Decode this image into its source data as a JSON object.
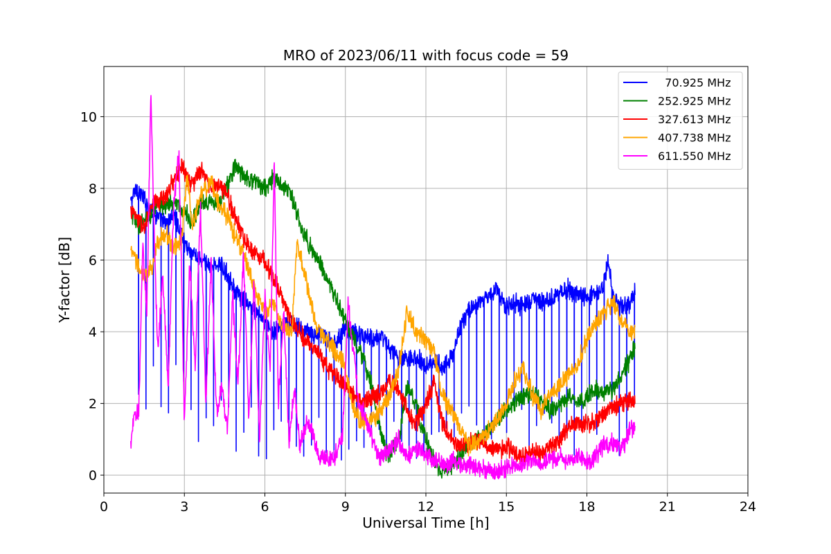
{
  "chart_data": {
    "type": "line",
    "title": "MRO of 2023/06/11 with focus code = 59",
    "xlabel": "Universal Time [h]",
    "ylabel": "Y-factor [dB]",
    "xlim": [
      0,
      24
    ],
    "ylim": [
      -0.5,
      11.4
    ],
    "xticks": [
      0,
      3,
      6,
      9,
      12,
      15,
      18,
      21,
      24
    ],
    "yticks": [
      0,
      2,
      4,
      6,
      8,
      10
    ],
    "grid": true,
    "legend_position": "top-right",
    "series": [
      {
        "name": "  70.925 MHz",
        "color": "#0000ff",
        "x": [
          1.0,
          1.2,
          1.5,
          1.8,
          2.0,
          2.3,
          2.6,
          3.0,
          3.3,
          3.6,
          4.0,
          4.3,
          4.6,
          5.0,
          5.3,
          5.6,
          6.0,
          6.3,
          6.6,
          7.0,
          7.3,
          7.6,
          8.0,
          8.3,
          8.6,
          9.0,
          9.3,
          9.6,
          10.0,
          10.3,
          10.6,
          11.0,
          11.3,
          11.6,
          12.0,
          12.3,
          12.6,
          13.0,
          13.3,
          13.6,
          14.0,
          14.3,
          14.6,
          15.0,
          15.3,
          15.6,
          16.0,
          16.3,
          16.6,
          17.0,
          17.3,
          17.6,
          18.0,
          18.3,
          18.6,
          18.8,
          19.0,
          19.3,
          19.6,
          19.8
        ],
        "y": [
          7.6,
          8.0,
          7.7,
          7.4,
          7.2,
          7.0,
          7.3,
          6.5,
          6.2,
          6.0,
          5.8,
          5.9,
          5.6,
          5.0,
          4.8,
          4.6,
          4.3,
          4.0,
          4.1,
          4.2,
          4.1,
          4.0,
          3.9,
          3.8,
          3.7,
          4.1,
          4.0,
          3.9,
          3.8,
          3.9,
          3.6,
          3.2,
          3.3,
          3.3,
          3.1,
          3.2,
          3.0,
          3.3,
          4.2,
          4.6,
          4.8,
          5.0,
          5.2,
          4.7,
          4.8,
          4.7,
          4.9,
          4.8,
          4.9,
          5.1,
          5.2,
          5.0,
          5.0,
          5.0,
          5.2,
          6.0,
          4.9,
          4.7,
          4.8,
          5.2
        ],
        "dip_step": 0.28,
        "dip_depth": 0.55
      },
      {
        "name": "252.925 MHz",
        "color": "#008000",
        "x": [
          1.0,
          1.3,
          1.6,
          2.0,
          2.5,
          3.0,
          3.3,
          3.6,
          4.0,
          4.3,
          4.6,
          4.9,
          5.2,
          5.6,
          6.0,
          6.3,
          6.6,
          7.0,
          7.3,
          7.6,
          8.0,
          8.3,
          8.6,
          9.0,
          9.3,
          9.6,
          10.0,
          10.3,
          10.6,
          11.0,
          11.3,
          11.6,
          12.0,
          12.3,
          12.6,
          13.0,
          13.3,
          13.6,
          14.0,
          14.3,
          14.6,
          15.0,
          15.3,
          15.6,
          16.0,
          16.3,
          16.6,
          17.0,
          17.3,
          17.6,
          18.0,
          18.3,
          18.6,
          19.0,
          19.3,
          19.6,
          19.8
        ],
        "y": [
          7.3,
          6.9,
          7.2,
          7.5,
          7.6,
          7.4,
          7.0,
          7.6,
          7.7,
          7.5,
          8.1,
          8.6,
          8.4,
          8.2,
          8.0,
          8.3,
          8.1,
          7.8,
          7.0,
          6.5,
          6.0,
          5.5,
          5.0,
          4.3,
          3.8,
          3.3,
          2.5,
          1.2,
          0.5,
          1.0,
          2.5,
          2.0,
          1.0,
          0.4,
          0.1,
          0.2,
          0.6,
          0.9,
          1.0,
          1.2,
          1.5,
          1.8,
          2.0,
          2.2,
          2.3,
          2.1,
          1.8,
          2.0,
          2.2,
          2.0,
          2.2,
          2.4,
          2.3,
          2.4,
          2.8,
          3.2,
          3.7
        ],
        "dip_step": 0,
        "dip_depth": 0
      },
      {
        "name": "327.613 MHz",
        "color": "#ff0000",
        "x": [
          1.0,
          1.2,
          1.5,
          1.8,
          2.0,
          2.3,
          2.6,
          2.9,
          3.1,
          3.3,
          3.6,
          4.0,
          4.3,
          4.6,
          5.0,
          5.3,
          5.6,
          6.0,
          6.3,
          6.6,
          7.0,
          7.3,
          7.6,
          8.0,
          8.3,
          8.6,
          9.0,
          9.3,
          9.6,
          10.0,
          10.3,
          10.6,
          11.0,
          11.3,
          11.6,
          12.0,
          12.3,
          12.6,
          13.0,
          13.3,
          13.6,
          14.0,
          14.3,
          14.6,
          15.0,
          15.3,
          15.6,
          16.0,
          16.3,
          16.6,
          17.0,
          17.3,
          17.6,
          18.0,
          18.3,
          18.6,
          19.0,
          19.3,
          19.6,
          19.8
        ],
        "y": [
          7.4,
          7.2,
          6.9,
          7.5,
          7.6,
          7.8,
          8.2,
          8.7,
          8.3,
          8.1,
          8.5,
          8.0,
          8.1,
          7.8,
          7.0,
          6.5,
          6.2,
          6.0,
          5.5,
          5.0,
          4.3,
          4.0,
          3.7,
          3.4,
          3.0,
          2.8,
          2.5,
          2.2,
          2.0,
          2.2,
          2.3,
          2.6,
          2.4,
          1.8,
          1.4,
          2.0,
          2.6,
          1.5,
          0.9,
          0.8,
          0.9,
          1.0,
          0.8,
          0.7,
          0.8,
          0.6,
          0.5,
          0.7,
          0.5,
          0.8,
          1.0,
          1.3,
          1.5,
          1.4,
          1.5,
          1.7,
          1.9,
          2.0,
          2.1,
          2.0
        ],
        "dip_step": 0,
        "dip_depth": 0
      },
      {
        "name": "407.738 MHz",
        "color": "#ffa500",
        "x": [
          1.0,
          1.2,
          1.5,
          1.8,
          2.0,
          2.3,
          2.6,
          2.9,
          3.1,
          3.3,
          3.6,
          4.0,
          4.3,
          4.6,
          5.0,
          5.3,
          5.6,
          6.0,
          6.3,
          6.6,
          7.0,
          7.2,
          7.5,
          7.8,
          8.0,
          8.3,
          8.6,
          9.0,
          9.3,
          9.6,
          10.0,
          10.3,
          10.6,
          11.0,
          11.3,
          11.6,
          12.0,
          12.3,
          12.6,
          13.0,
          13.3,
          13.6,
          14.0,
          14.3,
          14.6,
          15.0,
          15.3,
          15.6,
          16.0,
          16.3,
          16.6,
          17.0,
          17.3,
          17.6,
          18.0,
          18.3,
          18.6,
          19.0,
          19.3,
          19.6,
          19.8
        ],
        "y": [
          6.2,
          6.0,
          5.5,
          5.8,
          6.5,
          6.8,
          6.3,
          6.6,
          8.3,
          7.0,
          7.8,
          8.2,
          7.5,
          7.2,
          6.5,
          6.0,
          5.2,
          4.5,
          4.8,
          4.2,
          4.0,
          6.5,
          5.5,
          4.5,
          4.0,
          3.8,
          3.5,
          3.0,
          1.8,
          1.5,
          1.5,
          1.8,
          2.2,
          3.0,
          4.6,
          4.0,
          3.8,
          3.5,
          2.2,
          1.7,
          1.3,
          0.8,
          1.0,
          1.2,
          1.5,
          2.0,
          2.6,
          3.0,
          2.2,
          1.8,
          2.3,
          2.5,
          2.8,
          3.0,
          3.8,
          4.2,
          4.5,
          4.8,
          4.3,
          4.0,
          4.0
        ],
        "dip_step": 0,
        "dip_depth": 0
      },
      {
        "name": "611.550 MHz",
        "color": "#ff00ff",
        "x": [
          1.0,
          1.1,
          1.3,
          1.45,
          1.6,
          1.75,
          1.9,
          2.0,
          2.2,
          2.4,
          2.6,
          2.8,
          3.0,
          3.2,
          3.4,
          3.6,
          3.8,
          4.0,
          4.2,
          4.4,
          4.6,
          4.8,
          5.0,
          5.2,
          5.4,
          5.6,
          5.8,
          6.0,
          6.2,
          6.35,
          6.5,
          6.7,
          6.9,
          7.1,
          7.3,
          7.6,
          8.0,
          8.3,
          8.6,
          8.9,
          9.1,
          9.3,
          9.5,
          9.8,
          10.0,
          10.3,
          10.6,
          11.0,
          11.3,
          11.6,
          12.0,
          12.3,
          12.6,
          13.0,
          13.3,
          13.6,
          14.0,
          14.3,
          14.6,
          15.0,
          15.3,
          15.6,
          16.0,
          16.3,
          16.6,
          17.0,
          17.3,
          17.6,
          18.0,
          18.3,
          18.6,
          19.0,
          19.3,
          19.6,
          19.8
        ],
        "y": [
          0.9,
          1.5,
          1.8,
          6.5,
          4.5,
          10.7,
          6.0,
          3.5,
          5.5,
          2.5,
          7.5,
          9.0,
          1.5,
          6.0,
          3.0,
          7.5,
          2.0,
          6.0,
          1.8,
          2.5,
          1.2,
          5.0,
          2.5,
          6.2,
          1.5,
          5.5,
          1.0,
          5.0,
          3.0,
          8.8,
          2.0,
          4.5,
          1.0,
          2.5,
          0.8,
          1.5,
          0.6,
          0.4,
          0.5,
          1.2,
          4.8,
          3.5,
          2.0,
          1.5,
          1.0,
          0.5,
          0.7,
          1.0,
          0.5,
          0.8,
          0.6,
          0.4,
          0.3,
          0.4,
          0.3,
          0.3,
          0.2,
          0.1,
          0.1,
          0.2,
          0.3,
          0.3,
          0.4,
          0.3,
          0.4,
          0.5,
          0.4,
          0.5,
          0.4,
          0.5,
          0.8,
          0.9,
          0.7,
          1.3,
          1.3
        ],
        "dip_step": 0,
        "dip_depth": 0
      }
    ]
  }
}
